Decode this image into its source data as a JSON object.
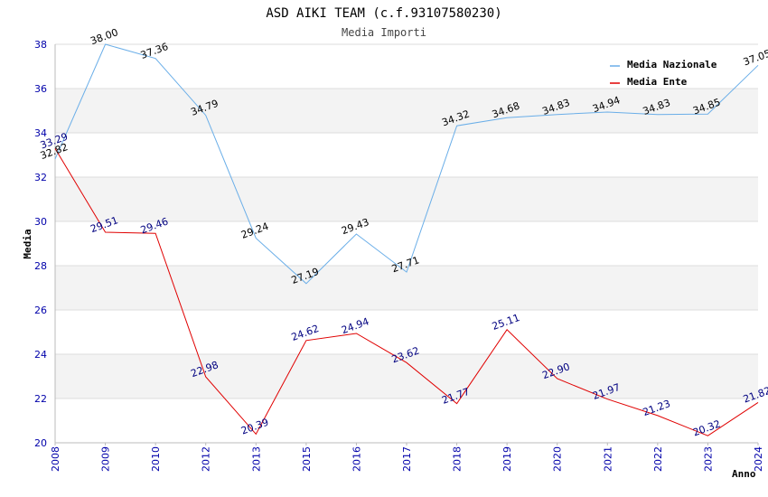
{
  "chart_data": {
    "type": "line",
    "title": "ASD AIKI TEAM (c.f.93107580230)",
    "subtitle": "Media Importi",
    "xlabel": "Anno",
    "ylabel": "Media",
    "ylim": [
      20,
      38
    ],
    "yticks": [
      "20",
      "22",
      "24",
      "26",
      "28",
      "30",
      "32",
      "34",
      "36",
      "38"
    ],
    "x": [
      "2008",
      "2009",
      "2010",
      "2012",
      "2013",
      "2015",
      "2016",
      "2017",
      "2018",
      "2019",
      "2020",
      "2021",
      "2022",
      "2023",
      "2024"
    ],
    "legend_position": "top-right",
    "grid": true,
    "series": [
      {
        "name": "Media Nazionale",
        "color": "#6aaee8",
        "values": [
          32.82,
          38.0,
          37.36,
          34.79,
          29.24,
          27.19,
          29.43,
          27.71,
          34.32,
          34.68,
          34.83,
          34.94,
          34.83,
          34.85,
          37.05
        ],
        "labels": [
          "32.82",
          "38.00",
          "37.36",
          "34.79",
          "29.24",
          "27.19",
          "29.43",
          "27.71",
          "34.32",
          "34.68",
          "34.83",
          "34.94",
          "34.83",
          "34.85",
          "37.05"
        ]
      },
      {
        "name": "Media Ente",
        "color": "#e00000",
        "values": [
          33.29,
          29.51,
          29.46,
          22.98,
          20.39,
          24.62,
          24.94,
          23.62,
          21.77,
          25.11,
          22.9,
          21.97,
          21.23,
          20.32,
          21.82
        ],
        "labels": [
          "33.29",
          "29.51",
          "29.46",
          "22.98",
          "20.39",
          "24.62",
          "24.94",
          "23.62",
          "21.77",
          "25.11",
          "22.90",
          "21.97",
          "21.23",
          "20.32",
          "21.82"
        ]
      }
    ]
  }
}
